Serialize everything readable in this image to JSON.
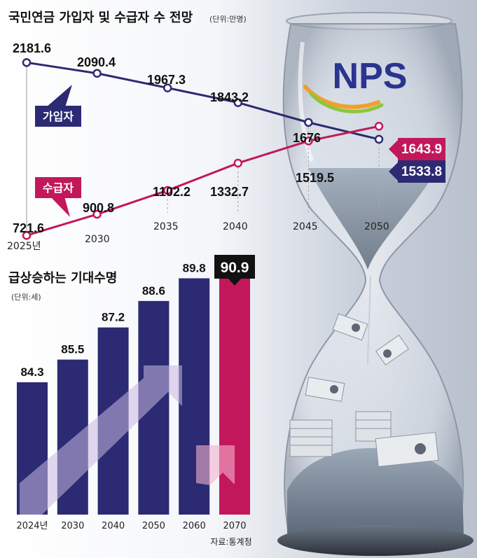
{
  "brand": {
    "logo_text": "NPS",
    "colors": {
      "navy": "#2b2a73",
      "magenta": "#c2185b",
      "logo_blue": "#2a3590",
      "logo_orange": "#f0a02a",
      "logo_green": "#8cc63f"
    }
  },
  "icons": [
    "hourglass-illustration",
    "banknote-bundle-icon"
  ],
  "chart_data": [
    {
      "type": "line",
      "title": "국민연금 가입자 및 수급자 수 전망",
      "unit_note": "(단위:만명)",
      "x": [
        2025,
        2030,
        2035,
        2040,
        2045,
        2050
      ],
      "x_tick_labels": [
        "2025년",
        "2030",
        "2035",
        "2040",
        "2045",
        "2050"
      ],
      "series": [
        {
          "name": "가입자",
          "color": "#2b2a73",
          "values": [
            2181.6,
            2090.4,
            1967.3,
            1843.2,
            1676,
            1533.8
          ],
          "value_labels": [
            "2181.6",
            "2090.4",
            "1967.3",
            "1843.2",
            "1676",
            "1533.8"
          ]
        },
        {
          "name": "수급자",
          "color": "#c2185b",
          "values": [
            721.6,
            900.8,
            1102.2,
            1332.7,
            1519.5,
            1643.9
          ],
          "value_labels": [
            "721.6",
            "900.8",
            "1102.2",
            "1332.7",
            "1519.5",
            "1643.9"
          ]
        }
      ],
      "grid": false,
      "legend": "callout labels on lines"
    },
    {
      "type": "bar",
      "title": "급상승하는 기대수명",
      "unit_note": "(단위:세)",
      "categories": [
        "2024년",
        "2030",
        "2040",
        "2050",
        "2060",
        "2070"
      ],
      "values": [
        84.3,
        85.5,
        87.2,
        88.6,
        89.8,
        90.9
      ],
      "value_labels": [
        "84.3",
        "85.5",
        "87.2",
        "88.6",
        "89.8",
        "90.9"
      ],
      "highlight_index": 5,
      "colors": {
        "bar": "#2b2a73",
        "highlight": "#c2185b"
      },
      "grid": false
    }
  ],
  "source": "자료:통계청"
}
